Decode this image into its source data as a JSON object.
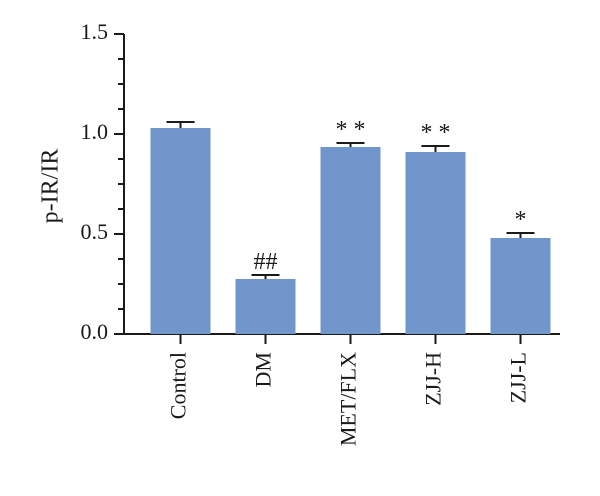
{
  "chart_data": {
    "type": "bar",
    "title": "",
    "xlabel": "",
    "ylabel": "p-IR/IR",
    "ylim": [
      0,
      1.5
    ],
    "yticks": [
      0.0,
      0.5,
      1.0,
      1.5
    ],
    "ytick_labels": [
      "0.0",
      "0.5",
      "1.0",
      "1.5"
    ],
    "grid": false,
    "categories": [
      "Control",
      "DM",
      "MET/FLX",
      "ZJJ-H",
      "ZJJ-L"
    ],
    "values": [
      1.03,
      0.275,
      0.935,
      0.91,
      0.48
    ],
    "errors": [
      0.03,
      0.02,
      0.02,
      0.03,
      0.025
    ],
    "annotations": [
      "",
      "##",
      "* *",
      "* *",
      "*"
    ],
    "bar_color": "#7196CC"
  }
}
